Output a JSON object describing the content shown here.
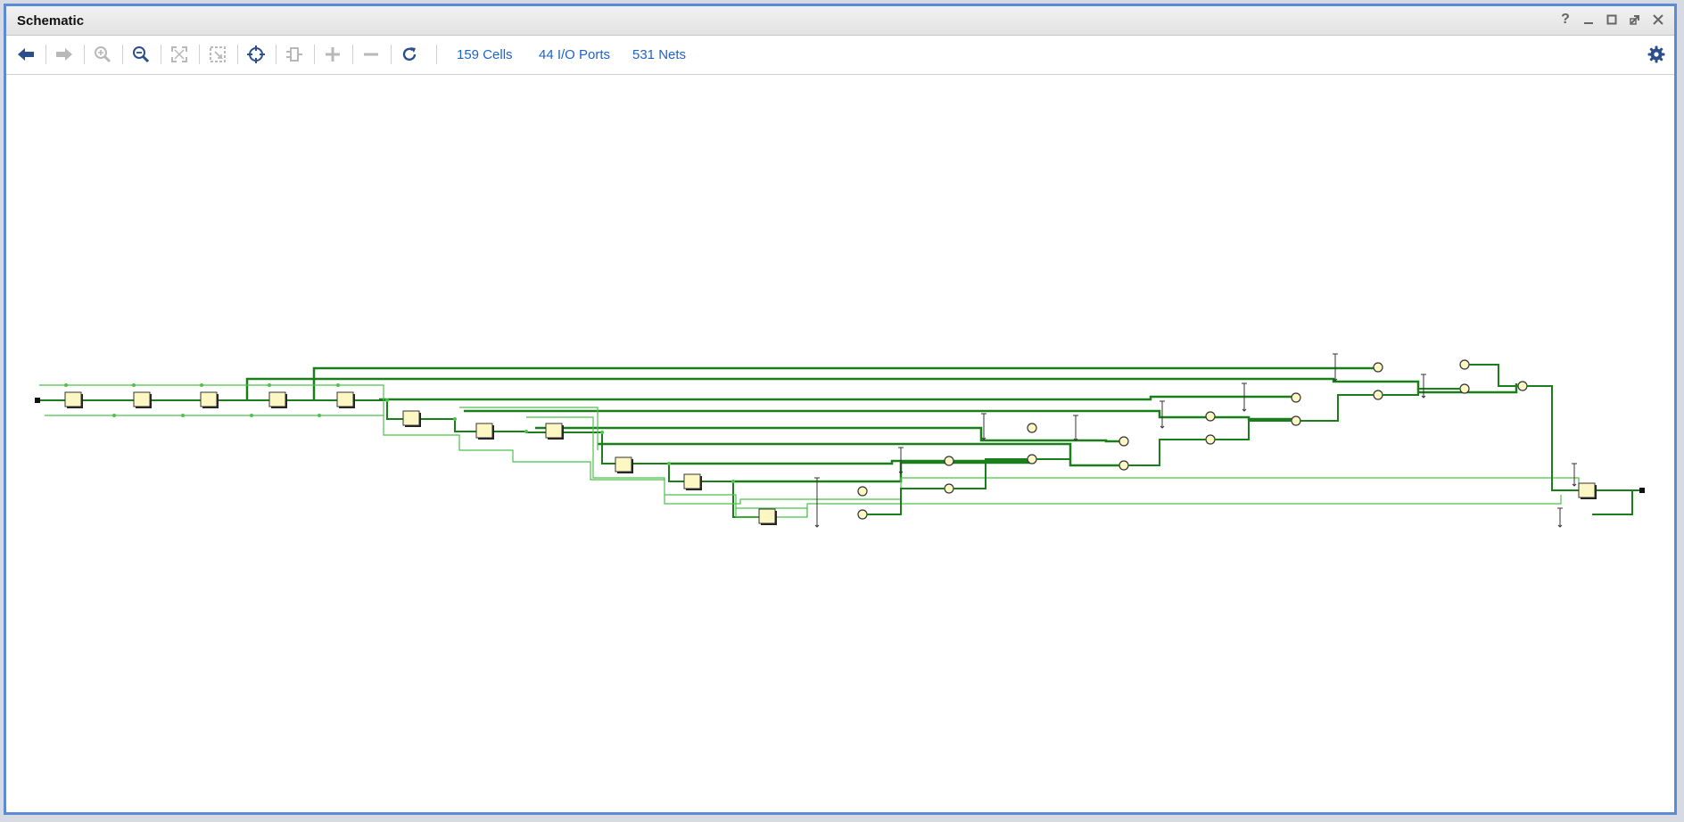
{
  "window": {
    "title": "Schematic",
    "controls": [
      "help-icon",
      "minimize-icon",
      "maximize-icon",
      "float-icon",
      "close-icon"
    ]
  },
  "toolbar": {
    "tools": [
      {
        "name": "back-button",
        "icon": "arrow-left-icon",
        "enabled": true
      },
      {
        "name": "forward-button",
        "icon": "arrow-right-icon",
        "enabled": false
      },
      {
        "name": "zoom-in-button",
        "icon": "zoom-in-icon",
        "enabled": false
      },
      {
        "name": "zoom-out-button",
        "icon": "zoom-out-icon",
        "enabled": true
      },
      {
        "name": "zoom-fit-button",
        "icon": "fit-icon",
        "enabled": false
      },
      {
        "name": "zoom-area-button",
        "icon": "zoom-area-icon",
        "enabled": false
      },
      {
        "name": "crosshair-button",
        "icon": "crosshair-icon",
        "enabled": true
      },
      {
        "name": "cell-button",
        "icon": "cell-icon",
        "enabled": false
      },
      {
        "name": "expand-button",
        "icon": "plus-icon",
        "enabled": false
      },
      {
        "name": "collapse-button",
        "icon": "minus-icon",
        "enabled": false
      },
      {
        "name": "refresh-button",
        "icon": "refresh-icon",
        "enabled": true
      }
    ],
    "stats": {
      "cells": "159 Cells",
      "io_ports": "44 I/O Ports",
      "nets": "531 Nets"
    },
    "settings_icon": "gear-icon"
  },
  "colors": {
    "accent": "#1e63c8",
    "window_border": "#5b8ad6",
    "net_dark": "#1a7f1a",
    "net_light": "#4cc24c",
    "cell_fill": "#fdf7c4",
    "icon_enabled": "#2b4f8c",
    "icon_disabled": "#b8b8b8"
  }
}
